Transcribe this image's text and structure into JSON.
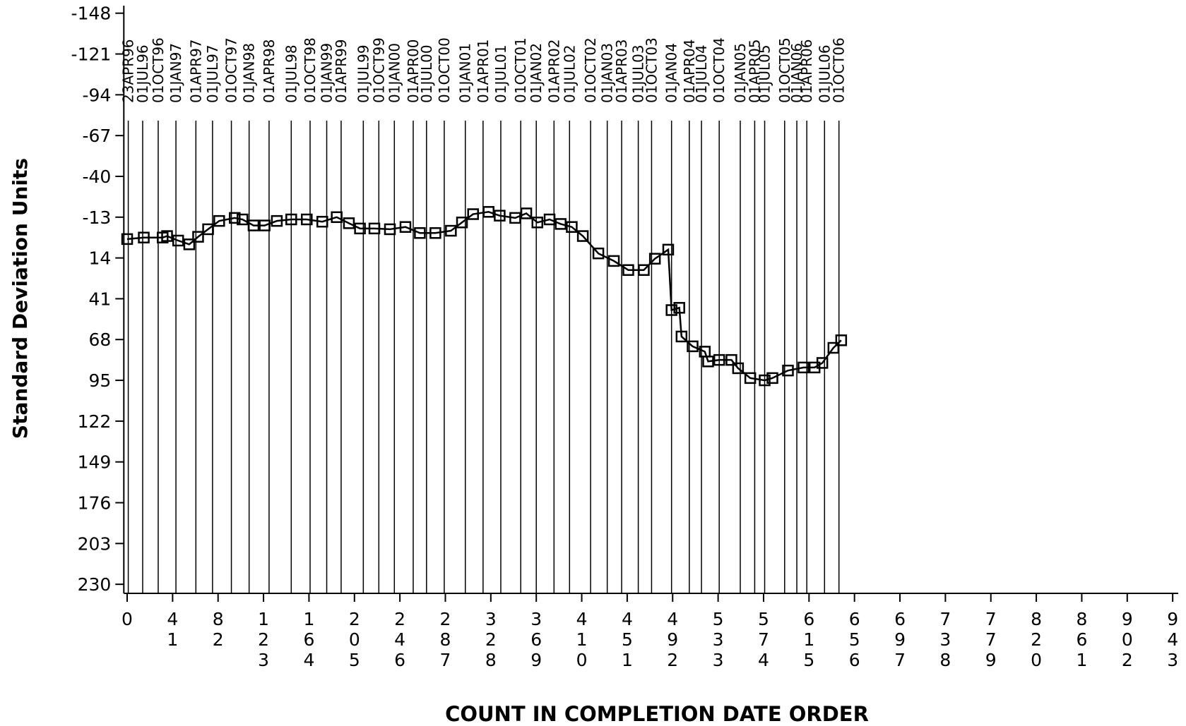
{
  "chart_data": {
    "type": "line",
    "marker": "square",
    "color": "#000000",
    "x_label": "COUNT IN COMPLETION DATE ORDER",
    "y_label": "Standard Deviation Units",
    "xlim": [
      -3,
      948
    ],
    "ylim": [
      -153,
      236
    ],
    "y_reversed": true,
    "xticks": [
      0,
      41,
      82,
      123,
      164,
      205,
      246,
      287,
      328,
      369,
      410,
      451,
      492,
      533,
      574,
      615,
      656,
      697,
      738,
      779,
      820,
      861,
      902,
      943
    ],
    "yticks": [
      -148,
      -121,
      -94,
      -67,
      -40,
      -13,
      14,
      41,
      68,
      95,
      122,
      149,
      176,
      203,
      230
    ],
    "reference_lines": {
      "labels": [
        "23APR96",
        "01JUL96",
        "01OCT96",
        "01JAN97",
        "01APR97",
        "01JUL97",
        "01OCT97",
        "01JAN98",
        "01APR98",
        "01JUL98",
        "01OCT98",
        "01JAN99",
        "01APR99",
        "01JUL99",
        "01OCT99",
        "01JAN00",
        "01APR00",
        "01JUL00",
        "01OCT00",
        "01JAN01",
        "01APR01",
        "01JUL01",
        "01OCT01",
        "01JAN02",
        "01APR02",
        "01JUL02",
        "01OCT02",
        "01JAN03",
        "01APR03",
        "01JUL03",
        "01OCT03",
        "01JAN04",
        "01APR04",
        "01JUL04",
        "01OCT04",
        "01JAN05",
        "01APR05",
        "01JUL05",
        "01OCT05",
        "01JAN06",
        "01APR06",
        "01JUL06",
        "01OCT06"
      ],
      "x": [
        1,
        14,
        28,
        44,
        62,
        77,
        94,
        110,
        128,
        148,
        165,
        180,
        193,
        213,
        227,
        241,
        258,
        270,
        286,
        305,
        321,
        337,
        355,
        369,
        385,
        399,
        418,
        433,
        446,
        461,
        473,
        491,
        507,
        518,
        534,
        553,
        566,
        575,
        593,
        604,
        613,
        629,
        642
      ]
    },
    "x": [
      0,
      15,
      32,
      36,
      46,
      56,
      64,
      73,
      83,
      97,
      104,
      114,
      124,
      135,
      148,
      162,
      176,
      189,
      200,
      210,
      223,
      237,
      251,
      264,
      278,
      292,
      302,
      312,
      326,
      336,
      350,
      360,
      370,
      381,
      391,
      401,
      411,
      425,
      439,
      452,
      466,
      476,
      488,
      491,
      498,
      500,
      510,
      521,
      524,
      534,
      545,
      551,
      562,
      575,
      582,
      596,
      610,
      620,
      627,
      637,
      644
    ],
    "values": [
      1.5,
      0.5,
      0.5,
      -0.5,
      2.5,
      5,
      0,
      -5,
      -10.5,
      -12.5,
      -11.5,
      -7.5,
      -7.5,
      -10.5,
      -11.5,
      -11.5,
      -10,
      -13,
      -9,
      -5.5,
      -5.5,
      -5,
      -6.5,
      -2.5,
      -2.5,
      -4,
      -9.5,
      -15,
      -16.5,
      -14,
      -12.5,
      -15.5,
      -9.5,
      -11.5,
      -8.5,
      -6.5,
      -0.5,
      11,
      16,
      22,
      22,
      14.5,
      8.5,
      48.5,
      47,
      66,
      72.5,
      76,
      82.5,
      81.5,
      81.5,
      87,
      93.5,
      95,
      93.5,
      88.5,
      86.5,
      86.5,
      83.5,
      73.5,
      68.5
    ]
  }
}
